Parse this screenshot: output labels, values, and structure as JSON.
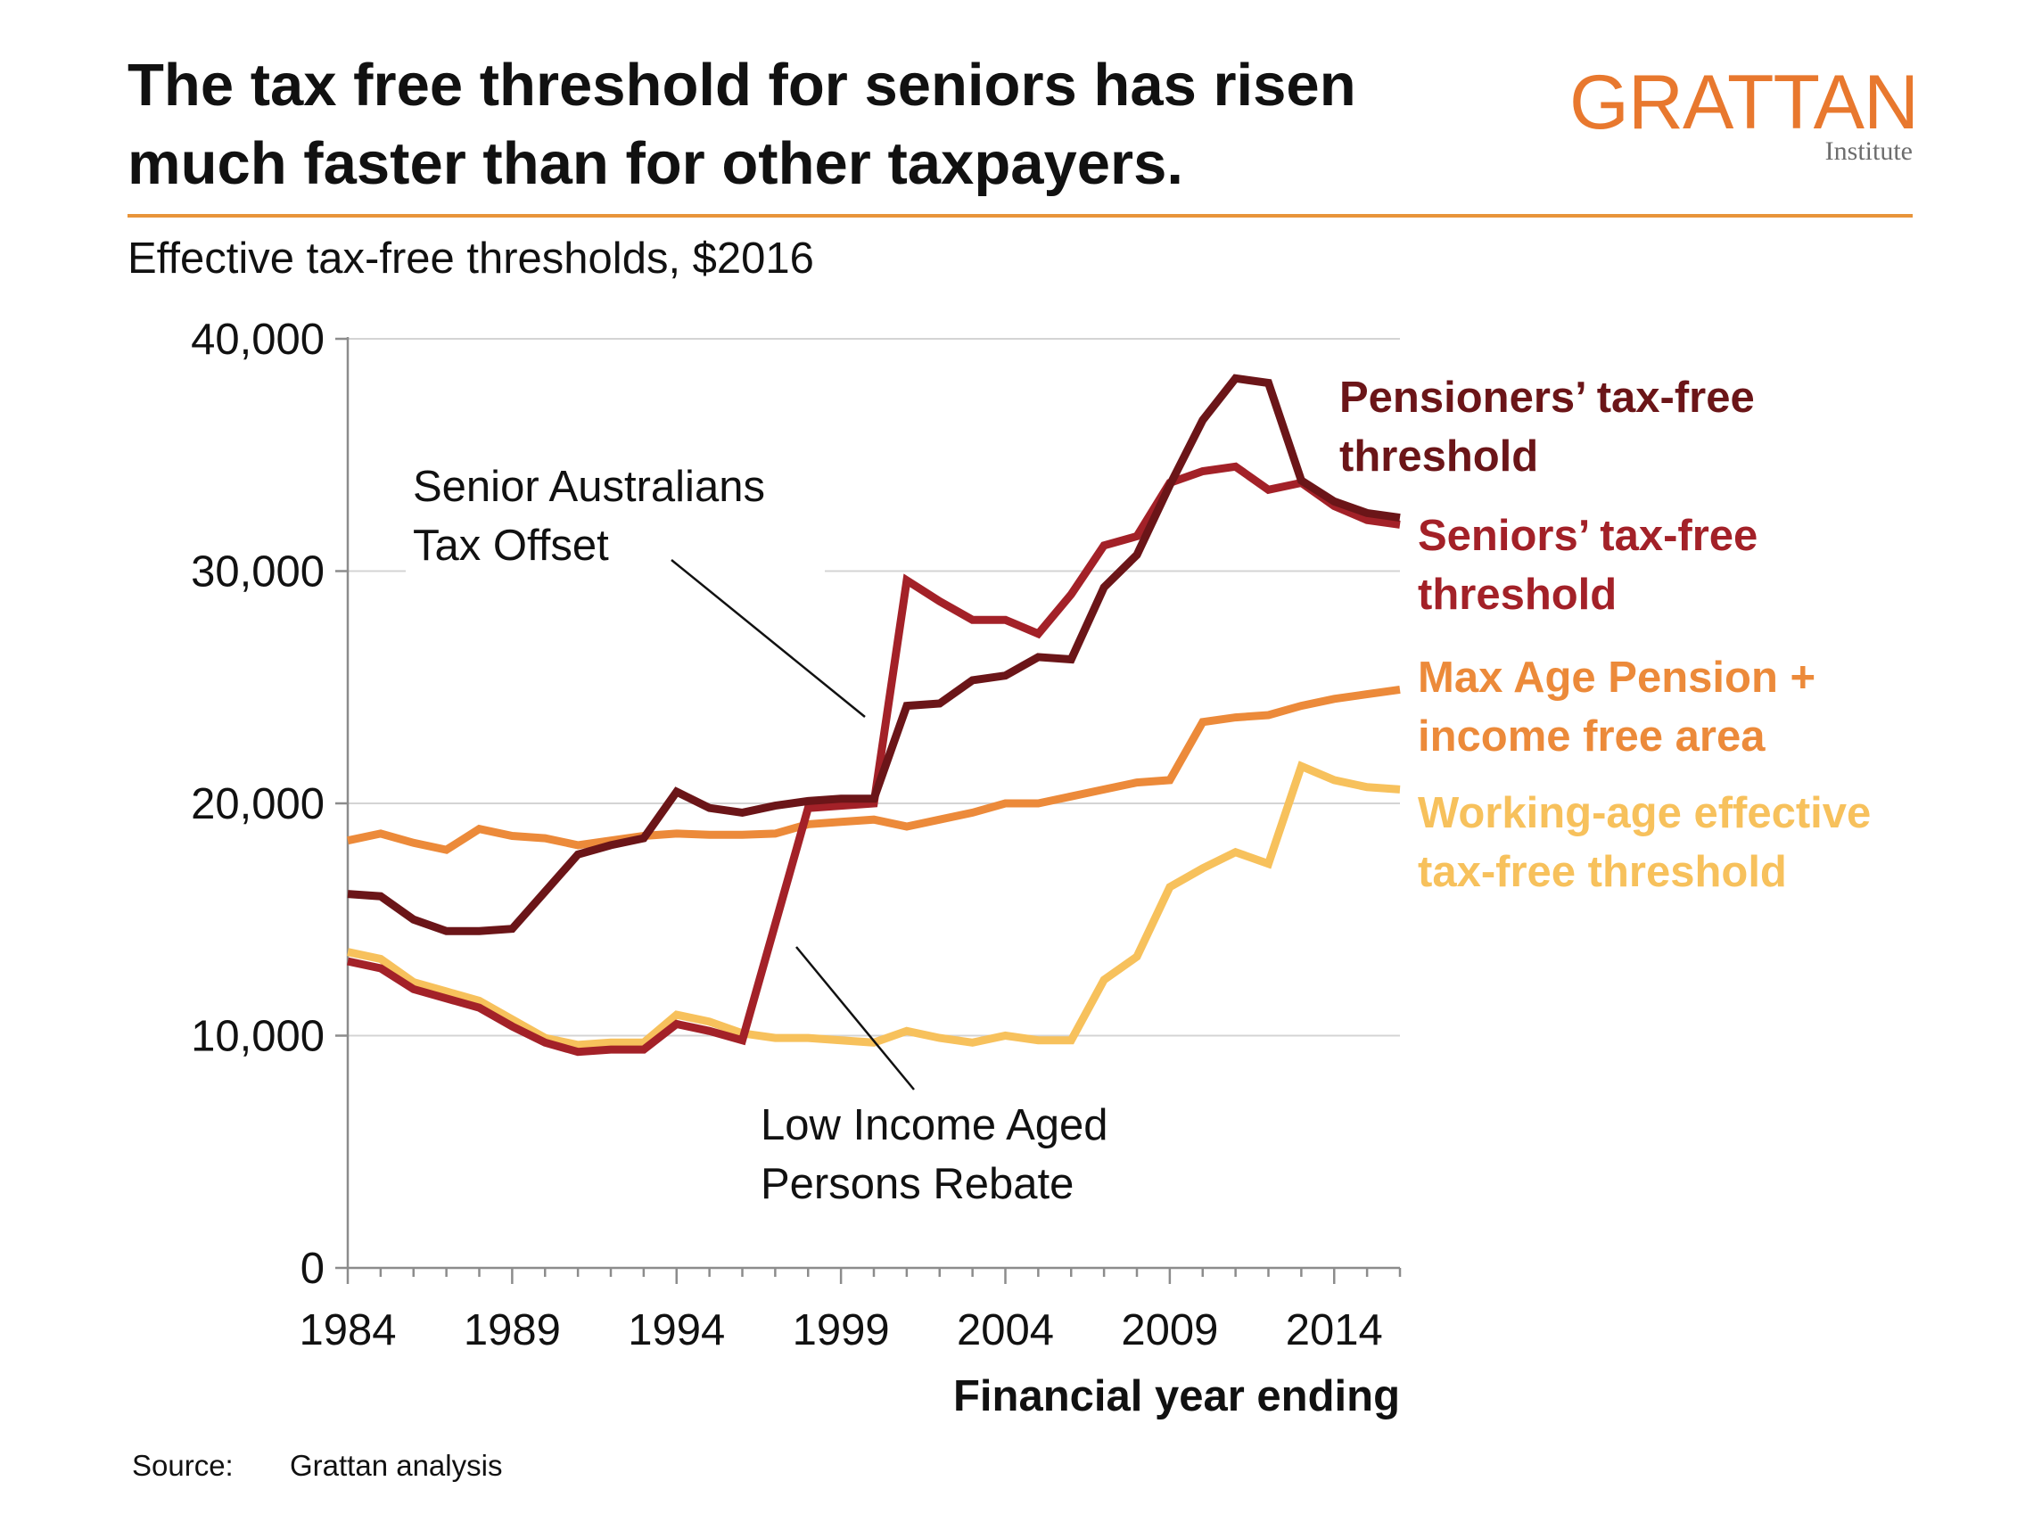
{
  "header": {
    "title_line1": "The tax free threshold for seniors has risen",
    "title_line2": "much faster than for other taxpayers.",
    "subtitle": "Effective tax-free thresholds, $2016",
    "logo_name": "GRATTAN",
    "logo_sub": "Institute"
  },
  "footer": {
    "source_label": "Source:",
    "source_text": "Grattan analysis"
  },
  "colors": {
    "accent": "#E8943A",
    "pensioners": "#6B1518",
    "seniors": "#A32128",
    "age_pension": "#EC8A3A",
    "working_age": "#F7C15C",
    "grid": "#d4d4d4",
    "axis": "#8c8c8c"
  },
  "chart_data": {
    "type": "line",
    "xlabel": "Financial year ending",
    "ylabel": "",
    "xlim": [
      1984,
      2016
    ],
    "ylim": [
      0,
      40000
    ],
    "x_ticks": [
      1984,
      1989,
      1994,
      1999,
      2004,
      2009,
      2014
    ],
    "y_ticks": [
      0,
      10000,
      20000,
      30000,
      40000
    ],
    "x_tick_labels": [
      "1984",
      "1989",
      "1994",
      "1999",
      "2004",
      "2009",
      "2014"
    ],
    "y_tick_labels": [
      "0",
      "10,000",
      "20,000",
      "30,000",
      "40,000"
    ],
    "grid": "horizontal",
    "series": [
      {
        "key": "age_pension",
        "name": "Max Age Pension + income free area",
        "label_lines": [
          "Max Age Pension +",
          "income free area"
        ],
        "color": "#EC8A3A",
        "points": [
          [
            1984,
            18400
          ],
          [
            1985,
            18700
          ],
          [
            1986,
            18300
          ],
          [
            1987,
            18000
          ],
          [
            1988,
            18900
          ],
          [
            1989,
            18600
          ],
          [
            1990,
            18500
          ],
          [
            1991,
            18200
          ],
          [
            1992,
            18400
          ],
          [
            1993,
            18600
          ],
          [
            1994,
            18700
          ],
          [
            1995,
            18650
          ],
          [
            1996,
            18650
          ],
          [
            1997,
            18700
          ],
          [
            1998,
            19100
          ],
          [
            1999,
            19200
          ],
          [
            2000,
            19300
          ],
          [
            2001,
            19000
          ],
          [
            2002,
            19300
          ],
          [
            2003,
            19600
          ],
          [
            2004,
            20000
          ],
          [
            2005,
            20000
          ],
          [
            2006,
            20300
          ],
          [
            2007,
            20600
          ],
          [
            2008,
            20900
          ],
          [
            2009,
            21000
          ],
          [
            2010,
            23500
          ],
          [
            2011,
            23700
          ],
          [
            2012,
            23800
          ],
          [
            2013,
            24200
          ],
          [
            2014,
            24500
          ],
          [
            2015,
            24700
          ],
          [
            2016,
            24900
          ]
        ]
      },
      {
        "key": "working_age",
        "name": "Working-age effective tax-free threshold",
        "label_lines": [
          "Working-age effective",
          "tax-free threshold"
        ],
        "color": "#F7C15C",
        "points": [
          [
            1984,
            13600
          ],
          [
            1985,
            13300
          ],
          [
            1986,
            12300
          ],
          [
            1987,
            11900
          ],
          [
            1988,
            11500
          ],
          [
            1989,
            10700
          ],
          [
            1990,
            9900
          ],
          [
            1991,
            9600
          ],
          [
            1992,
            9700
          ],
          [
            1993,
            9700
          ],
          [
            1994,
            10900
          ],
          [
            1995,
            10600
          ],
          [
            1996,
            10100
          ],
          [
            1997,
            9900
          ],
          [
            1998,
            9900
          ],
          [
            1999,
            9800
          ],
          [
            2000,
            9700
          ],
          [
            2001,
            10200
          ],
          [
            2002,
            9900
          ],
          [
            2003,
            9700
          ],
          [
            2004,
            10000
          ],
          [
            2005,
            9800
          ],
          [
            2006,
            9800
          ],
          [
            2007,
            12400
          ],
          [
            2008,
            13400
          ],
          [
            2009,
            16400
          ],
          [
            2010,
            17200
          ],
          [
            2011,
            17900
          ],
          [
            2012,
            17400
          ],
          [
            2013,
            21600
          ],
          [
            2014,
            21000
          ],
          [
            2015,
            20700
          ],
          [
            2016,
            20600
          ]
        ]
      },
      {
        "key": "seniors",
        "name": "Seniors’ tax-free threshold",
        "label_lines": [
          "Seniors’ tax-free",
          "threshold"
        ],
        "color": "#A32128",
        "points": [
          [
            1984,
            13200
          ],
          [
            1985,
            12900
          ],
          [
            1986,
            12000
          ],
          [
            1987,
            11600
          ],
          [
            1988,
            11200
          ],
          [
            1989,
            10400
          ],
          [
            1990,
            9700
          ],
          [
            1991,
            9300
          ],
          [
            1992,
            9400
          ],
          [
            1993,
            9400
          ],
          [
            1994,
            10500
          ],
          [
            1995,
            10200
          ],
          [
            1996,
            9800
          ],
          [
            1998,
            19800
          ],
          [
            1999,
            19900
          ],
          [
            2000,
            20000
          ],
          [
            2001,
            29600
          ],
          [
            2002,
            28700
          ],
          [
            2003,
            27900
          ],
          [
            2004,
            27900
          ],
          [
            2005,
            27300
          ],
          [
            2006,
            29000
          ],
          [
            2007,
            31100
          ],
          [
            2008,
            31500
          ],
          [
            2009,
            33800
          ],
          [
            2010,
            34300
          ],
          [
            2011,
            34500
          ],
          [
            2012,
            33500
          ],
          [
            2013,
            33800
          ],
          [
            2014,
            32800
          ],
          [
            2015,
            32200
          ],
          [
            2016,
            32000
          ]
        ]
      },
      {
        "key": "pensioners",
        "name": "Pensioners’ tax-free threshold",
        "label_lines": [
          "Pensioners’ tax-free",
          "threshold"
        ],
        "color": "#6B1518",
        "points": [
          [
            1984,
            16100
          ],
          [
            1985,
            16000
          ],
          [
            1986,
            15000
          ],
          [
            1987,
            14500
          ],
          [
            1988,
            14500
          ],
          [
            1989,
            14600
          ],
          [
            1990,
            16200
          ],
          [
            1991,
            17800
          ],
          [
            1992,
            18200
          ],
          [
            1993,
            18500
          ],
          [
            1994,
            20500
          ],
          [
            1995,
            19800
          ],
          [
            1996,
            19600
          ],
          [
            1997,
            19900
          ],
          [
            1998,
            20100
          ],
          [
            1999,
            20200
          ],
          [
            2000,
            20200
          ],
          [
            2001,
            24200
          ],
          [
            2002,
            24300
          ],
          [
            2003,
            25300
          ],
          [
            2004,
            25500
          ],
          [
            2005,
            26300
          ],
          [
            2006,
            26200
          ],
          [
            2007,
            29300
          ],
          [
            2008,
            30700
          ],
          [
            2009,
            33700
          ],
          [
            2010,
            36500
          ],
          [
            2011,
            38300
          ],
          [
            2012,
            38100
          ],
          [
            2013,
            33900
          ],
          [
            2014,
            33000
          ],
          [
            2015,
            32500
          ],
          [
            2016,
            32300
          ]
        ]
      }
    ],
    "annotations": [
      {
        "key": "sato",
        "lines": [
          "Senior Australians",
          "Tax Offset"
        ]
      },
      {
        "key": "lipr",
        "lines": [
          "Low Income Aged",
          "Persons Rebate"
        ]
      }
    ]
  }
}
